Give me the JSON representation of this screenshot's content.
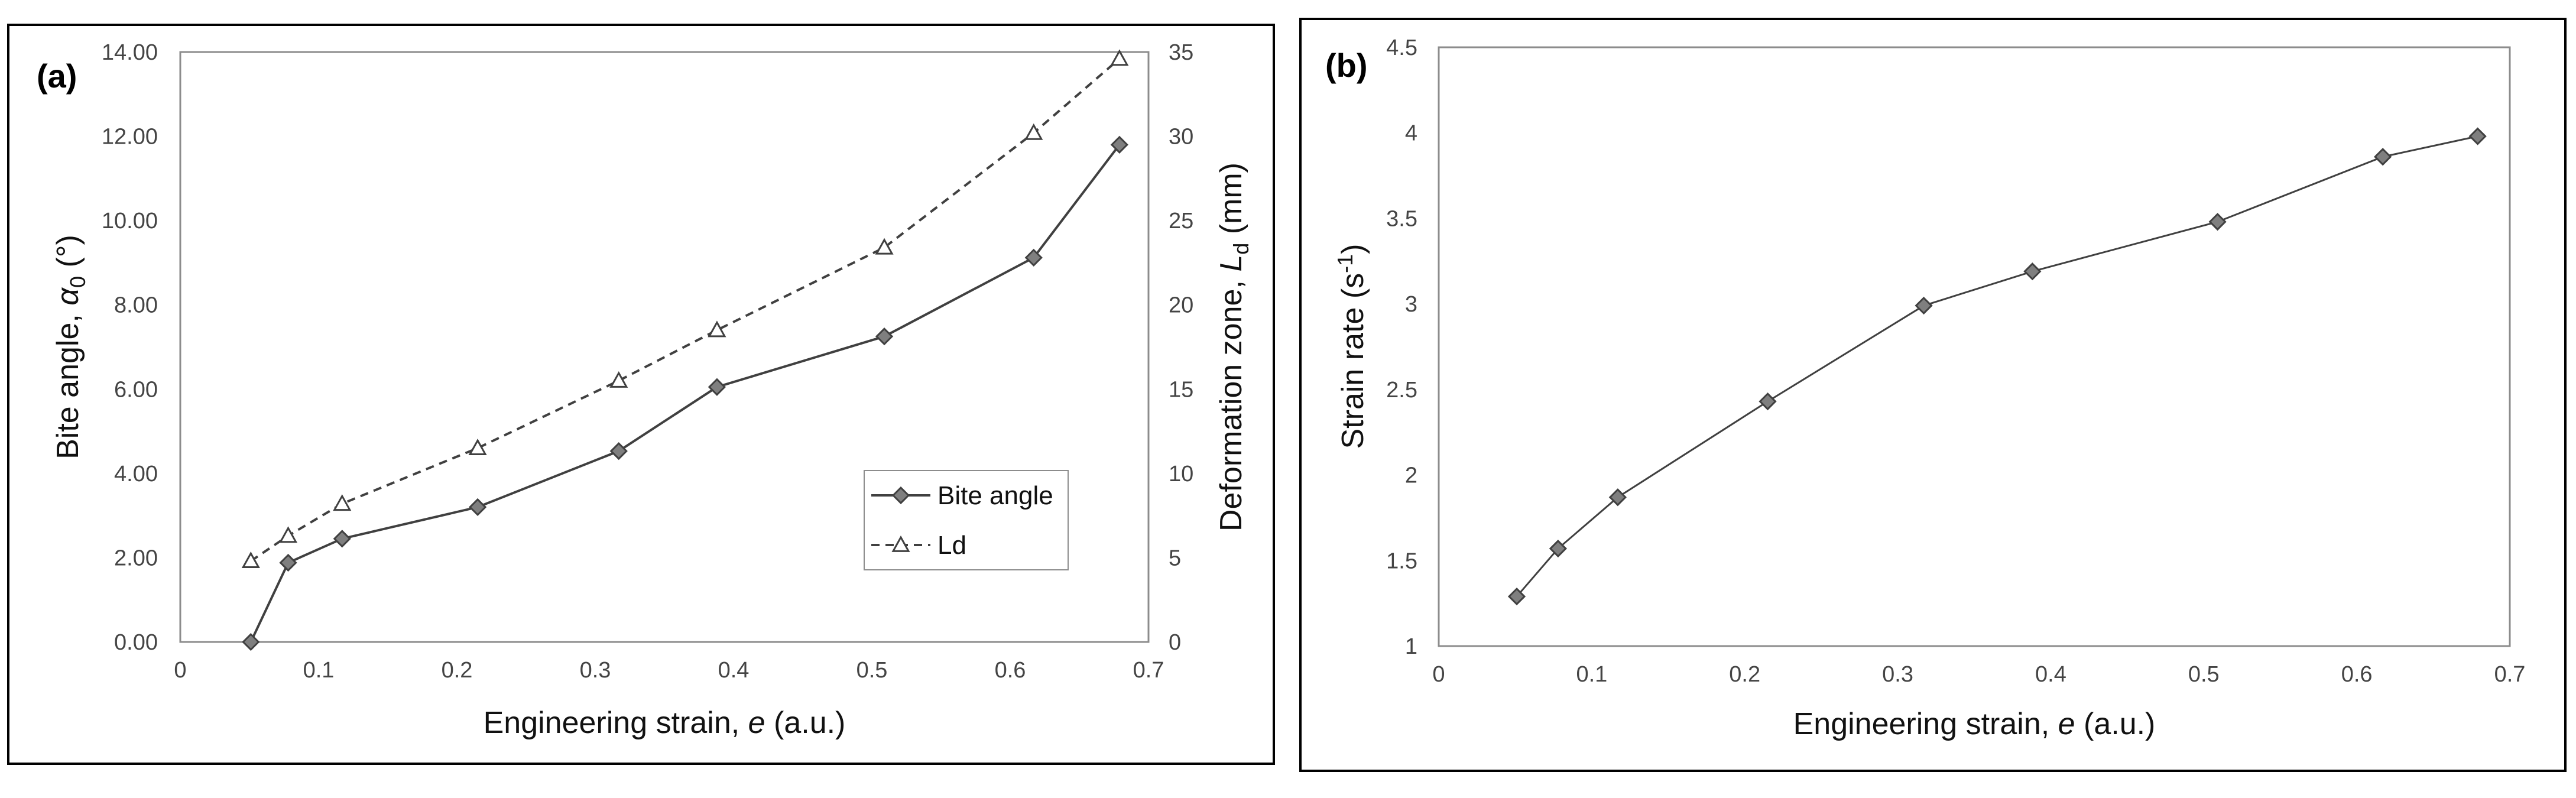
{
  "colors": {
    "frame": "#000000",
    "axis": "#8c8c8c",
    "line": "#404040",
    "marker_fill": "#7f7f7f",
    "marker_stroke": "#404040",
    "open_marker_fill": "#ffffff"
  },
  "chart_data": [
    {
      "panel_label": "(a)",
      "type": "line",
      "xlabel": {
        "main": "Engineering strain, ",
        "italic": "e",
        "unit": " (a.u.)"
      },
      "ylabel_left": {
        "main": "Bite angle, ",
        "italic": "α",
        "sub": "0",
        "unit": " (°)"
      },
      "ylabel_right": {
        "main": "Deformation zone, ",
        "italic": "L",
        "sub": "d",
        "unit": " (mm)"
      },
      "xlim": [
        0,
        0.7
      ],
      "ylim_left": [
        0,
        14
      ],
      "ylim_right": [
        0,
        35
      ],
      "x_ticks": [
        "0",
        "0.1",
        "0.2",
        "0.3",
        "0.4",
        "0.5",
        "0.6",
        "0.7"
      ],
      "y_left_ticks": [
        "0.00",
        "2.00",
        "4.00",
        "6.00",
        "8.00",
        "10.00",
        "12.00",
        "14.00"
      ],
      "y_right_ticks": [
        "0",
        "5",
        "10",
        "15",
        "20",
        "25",
        "30",
        "35"
      ],
      "series": [
        {
          "name": "Bite angle",
          "axis": "left",
          "marker": "diamond",
          "dash": "solid",
          "x": [
            0.051,
            0.078,
            0.117,
            0.215,
            0.317,
            0.388,
            0.509,
            0.617,
            0.679
          ],
          "y": [
            0.0,
            1.88,
            2.45,
            3.2,
            4.53,
            6.05,
            7.25,
            9.12,
            11.8
          ]
        },
        {
          "name": "Ld",
          "axis": "right",
          "marker": "open-triangle",
          "dash": "dashed",
          "x": [
            0.051,
            0.078,
            0.117,
            0.215,
            0.317,
            0.388,
            0.509,
            0.617,
            0.679
          ],
          "y": [
            4.8,
            6.3,
            8.2,
            11.5,
            15.5,
            18.5,
            23.4,
            30.2,
            34.6
          ]
        }
      ],
      "legend": {
        "position": "lower-right",
        "entries": [
          "Bite angle",
          "Ld"
        ]
      }
    },
    {
      "panel_label": "(b)",
      "type": "line",
      "xlabel": {
        "main": "Engineering strain, ",
        "italic": "e",
        "unit": " (a.u.)"
      },
      "ylabel": {
        "main": "Strain rate (s",
        "sup": "-1",
        "unit": ")"
      },
      "xlim": [
        0,
        0.7
      ],
      "ylim": [
        1,
        4.5
      ],
      "x_ticks": [
        "0",
        "0.1",
        "0.2",
        "0.3",
        "0.4",
        "0.5",
        "0.6",
        "0.7"
      ],
      "y_ticks": [
        "1",
        "1.5",
        "2",
        "2.5",
        "3",
        "3.5",
        "4",
        "4.5"
      ],
      "series": [
        {
          "name": "Strain rate",
          "marker": "diamond",
          "dash": "solid",
          "x": [
            0.051,
            0.078,
            0.117,
            0.215,
            0.317,
            0.388,
            0.509,
            0.617,
            0.679
          ],
          "y": [
            1.29,
            1.57,
            1.87,
            2.43,
            2.99,
            3.19,
            3.48,
            3.86,
            3.98
          ]
        }
      ]
    }
  ]
}
